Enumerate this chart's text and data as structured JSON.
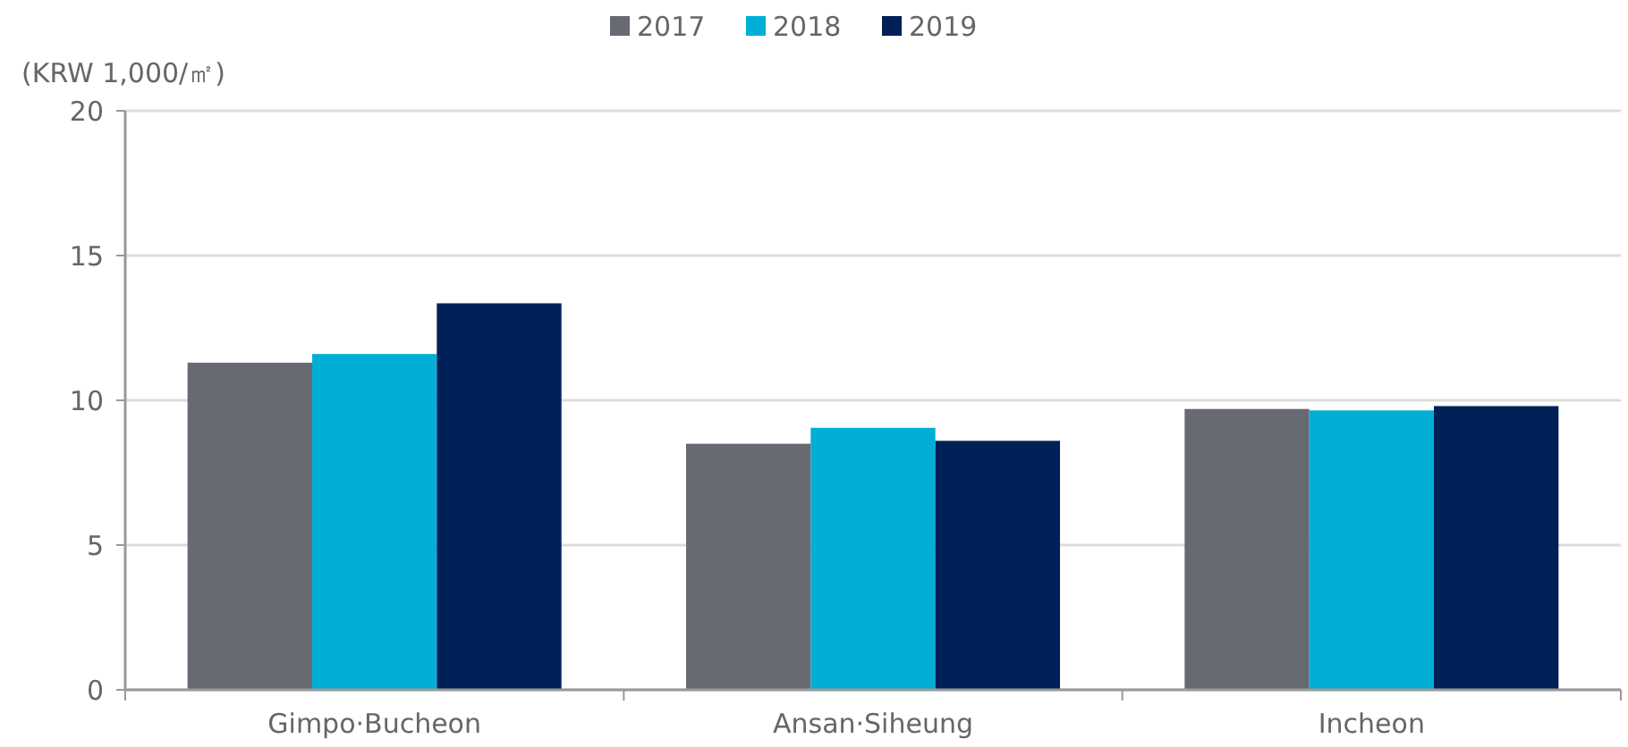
{
  "chart_data": {
    "type": "bar",
    "ylabel": "(KRW 1,000/㎡)",
    "categories": [
      "Gimpo·Bucheon",
      "Ansan·Siheung",
      "Incheon"
    ],
    "series": [
      {
        "name": "2017",
        "color": "#676a72",
        "values": [
          11.3,
          8.5,
          9.7
        ]
      },
      {
        "name": "2018",
        "color": "#00aed6",
        "values": [
          11.6,
          9.05,
          9.65
        ]
      },
      {
        "name": "2019",
        "color": "#002058",
        "values": [
          13.35,
          8.6,
          9.8
        ]
      }
    ],
    "ylim": [
      0,
      20
    ],
    "yticks": [
      0,
      5,
      10,
      15,
      20
    ],
    "grid": "y",
    "legend": "top"
  }
}
